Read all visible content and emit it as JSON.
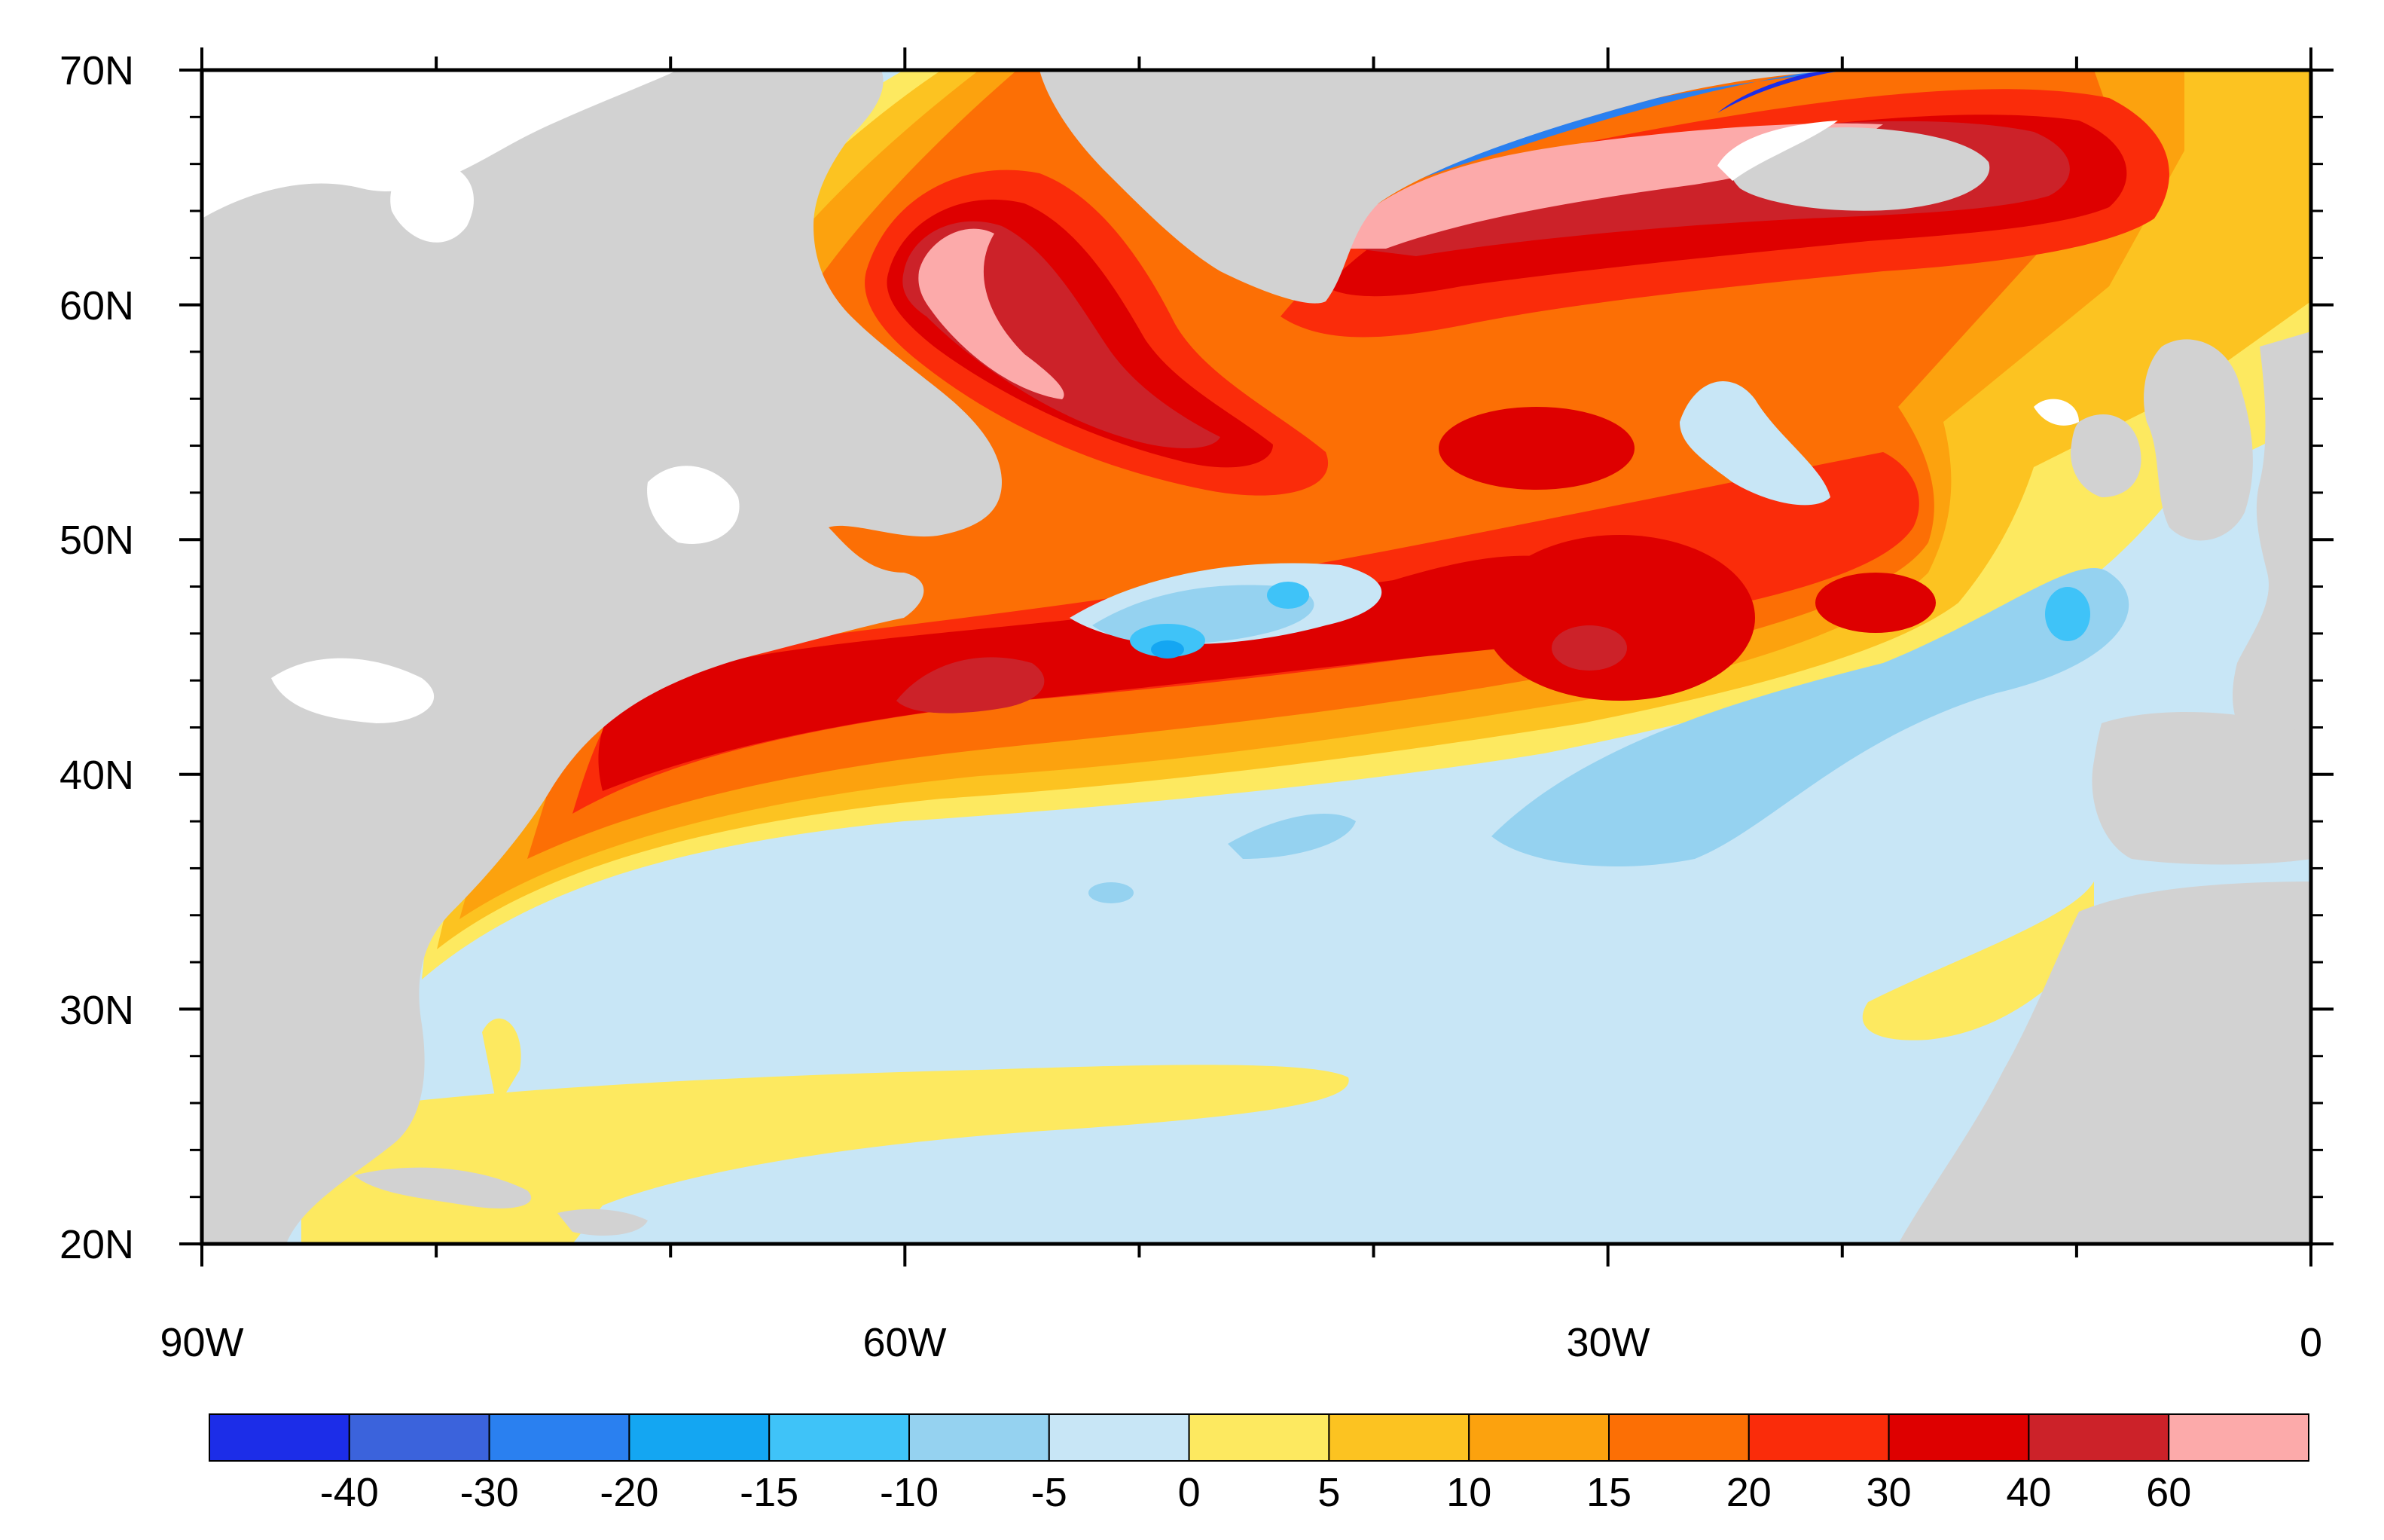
{
  "map": {
    "lat_labels": [
      "70N",
      "60N",
      "50N",
      "40N",
      "30N",
      "20N"
    ],
    "lon_labels": [
      "90W",
      "60W",
      "30W",
      "0"
    ],
    "extent": {
      "lon": [
        -90,
        0
      ],
      "lat": [
        20,
        70
      ]
    }
  },
  "colorbar": {
    "labels": [
      "-40",
      "-30",
      "-20",
      "-15",
      "-10",
      "-5",
      "0",
      "5",
      "10",
      "15",
      "20",
      "30",
      "40",
      "60"
    ],
    "colors": [
      "#1c2de8",
      "#3b63dc",
      "#2a80f0",
      "#14a6f2",
      "#3fc3f8",
      "#95d2f0",
      "#c8e6f6",
      "#fde960",
      "#fcc321",
      "#fca20e",
      "#fc6f05",
      "#fa2c0a",
      "#de0000",
      "#cc2229",
      "#fcaaaa"
    ]
  },
  "colors": {
    "land": "#d2d2d2",
    "ocean_base": "#c8e6f6",
    "frame": "#000000"
  }
}
